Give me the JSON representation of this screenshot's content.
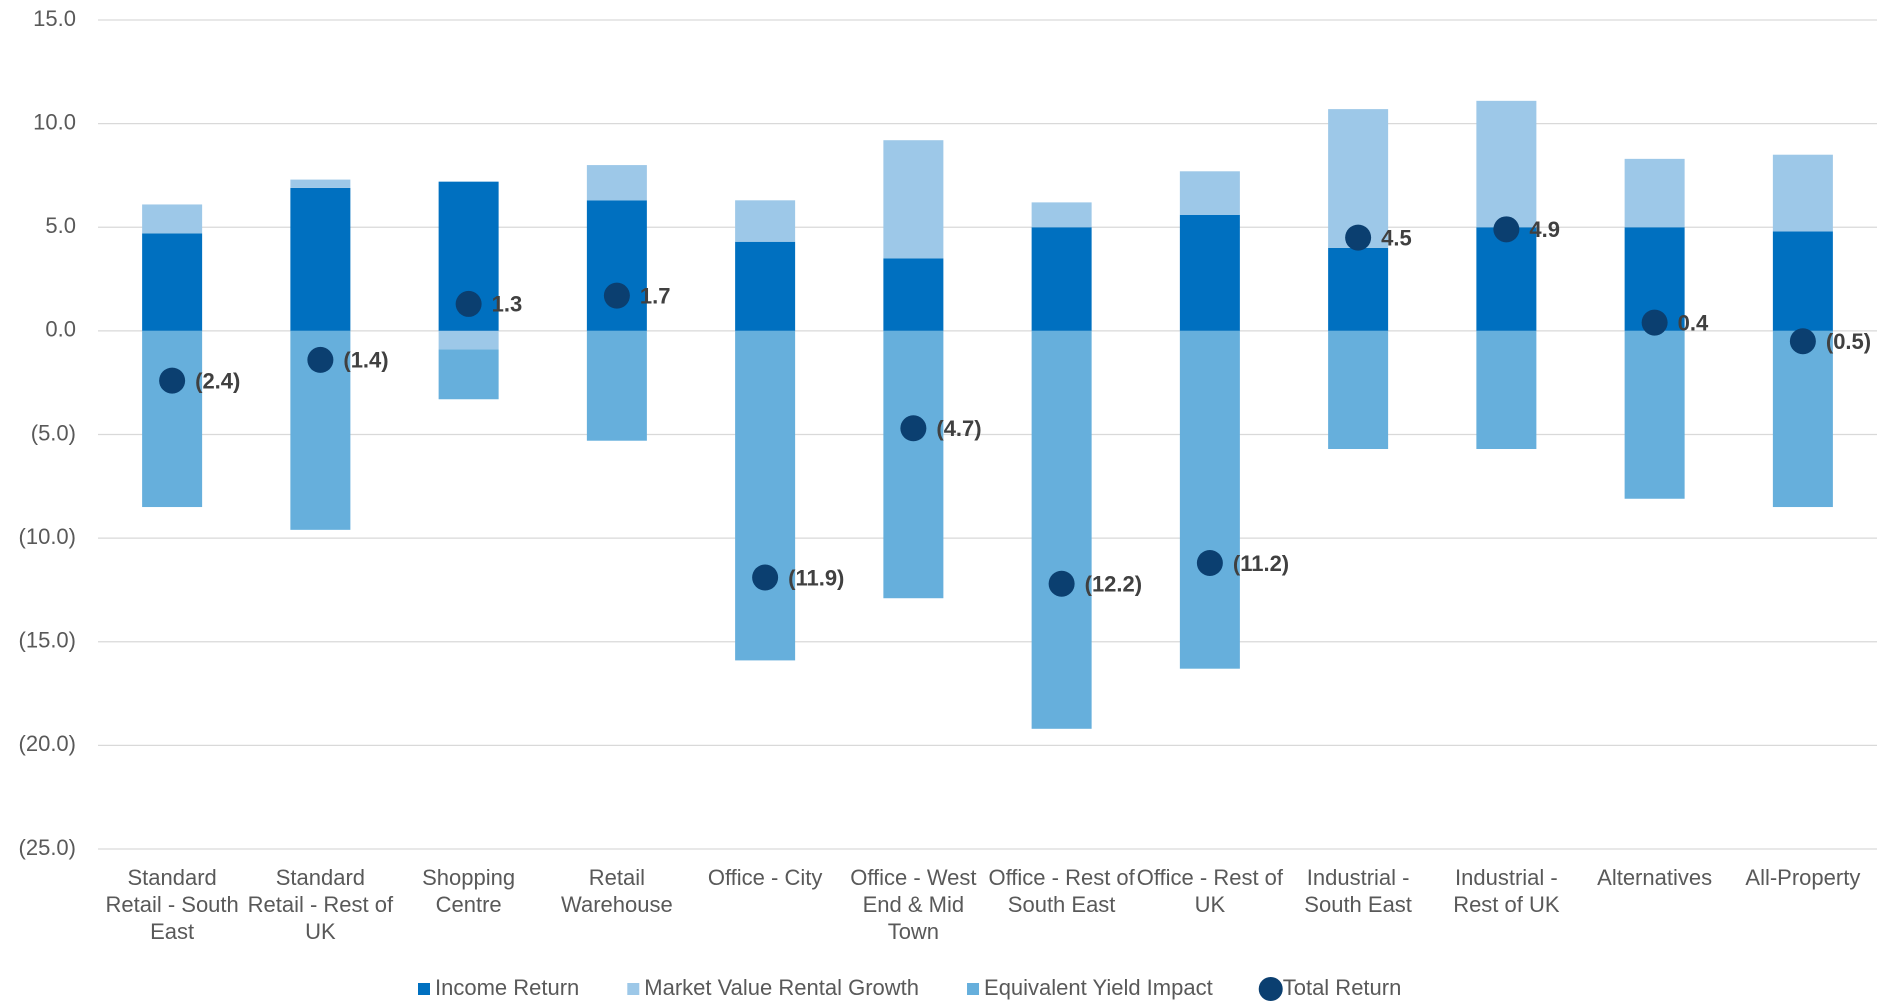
{
  "chart_data": {
    "type": "bar",
    "stacked": true,
    "categories": [
      "Standard Retail - South East",
      "Standard Retail - Rest of UK",
      "Shopping Centre",
      "Retail Warehouse",
      "Office - City",
      "Office - West End & Mid Town",
      "Office - Rest of South East",
      "Office - Rest of UK",
      "Industrial - South East",
      "Industrial - Rest of UK",
      "Alternatives",
      "All-Property"
    ],
    "series": [
      {
        "name": "Income Return",
        "color": "#0070c0",
        "values": [
          4.7,
          6.9,
          7.2,
          6.3,
          4.3,
          3.5,
          5.0,
          5.6,
          4.0,
          5.0,
          5.0,
          4.8
        ]
      },
      {
        "name": "Market Value Rental Growth",
        "color": "#9dc8e8",
        "values": [
          1.4,
          0.4,
          -0.9,
          1.7,
          2.0,
          5.7,
          1.2,
          2.1,
          6.7,
          6.1,
          3.3,
          3.7
        ]
      },
      {
        "name": "Equivalent Yield Impact",
        "color": "#66afdc",
        "values": [
          -8.5,
          -9.6,
          -2.4,
          -5.3,
          -15.9,
          -12.9,
          -19.2,
          -16.3,
          -5.7,
          -5.7,
          -8.1,
          -8.5
        ]
      },
      {
        "name": "Total Return",
        "type": "scatter",
        "color": "#0b3f70",
        "values": [
          -2.4,
          -1.4,
          1.3,
          1.7,
          -11.9,
          -4.7,
          -12.2,
          -11.2,
          4.5,
          4.9,
          0.4,
          -0.5
        ],
        "value_labels": [
          "(2.4)",
          "(1.4)",
          "1.3",
          "1.7",
          "(11.9)",
          "(4.7)",
          "(12.2)",
          "(11.2)",
          "4.5",
          "4.9",
          "0.4",
          "(0.5)"
        ]
      }
    ],
    "ylim": [
      -25,
      15
    ],
    "yticks": [
      {
        "value": -25,
        "label": "(25.0)"
      },
      {
        "value": -20,
        "label": "(20.0)"
      },
      {
        "value": -15,
        "label": "(15.0)"
      },
      {
        "value": -10,
        "label": "(10.0)"
      },
      {
        "value": -5,
        "label": "(5.0)"
      },
      {
        "value": 0,
        "label": "0.0"
      },
      {
        "value": 5,
        "label": "5.0"
      },
      {
        "value": 10,
        "label": "10.0"
      },
      {
        "value": 15,
        "label": "15.0"
      }
    ],
    "grid": true,
    "legend": "bottom"
  }
}
